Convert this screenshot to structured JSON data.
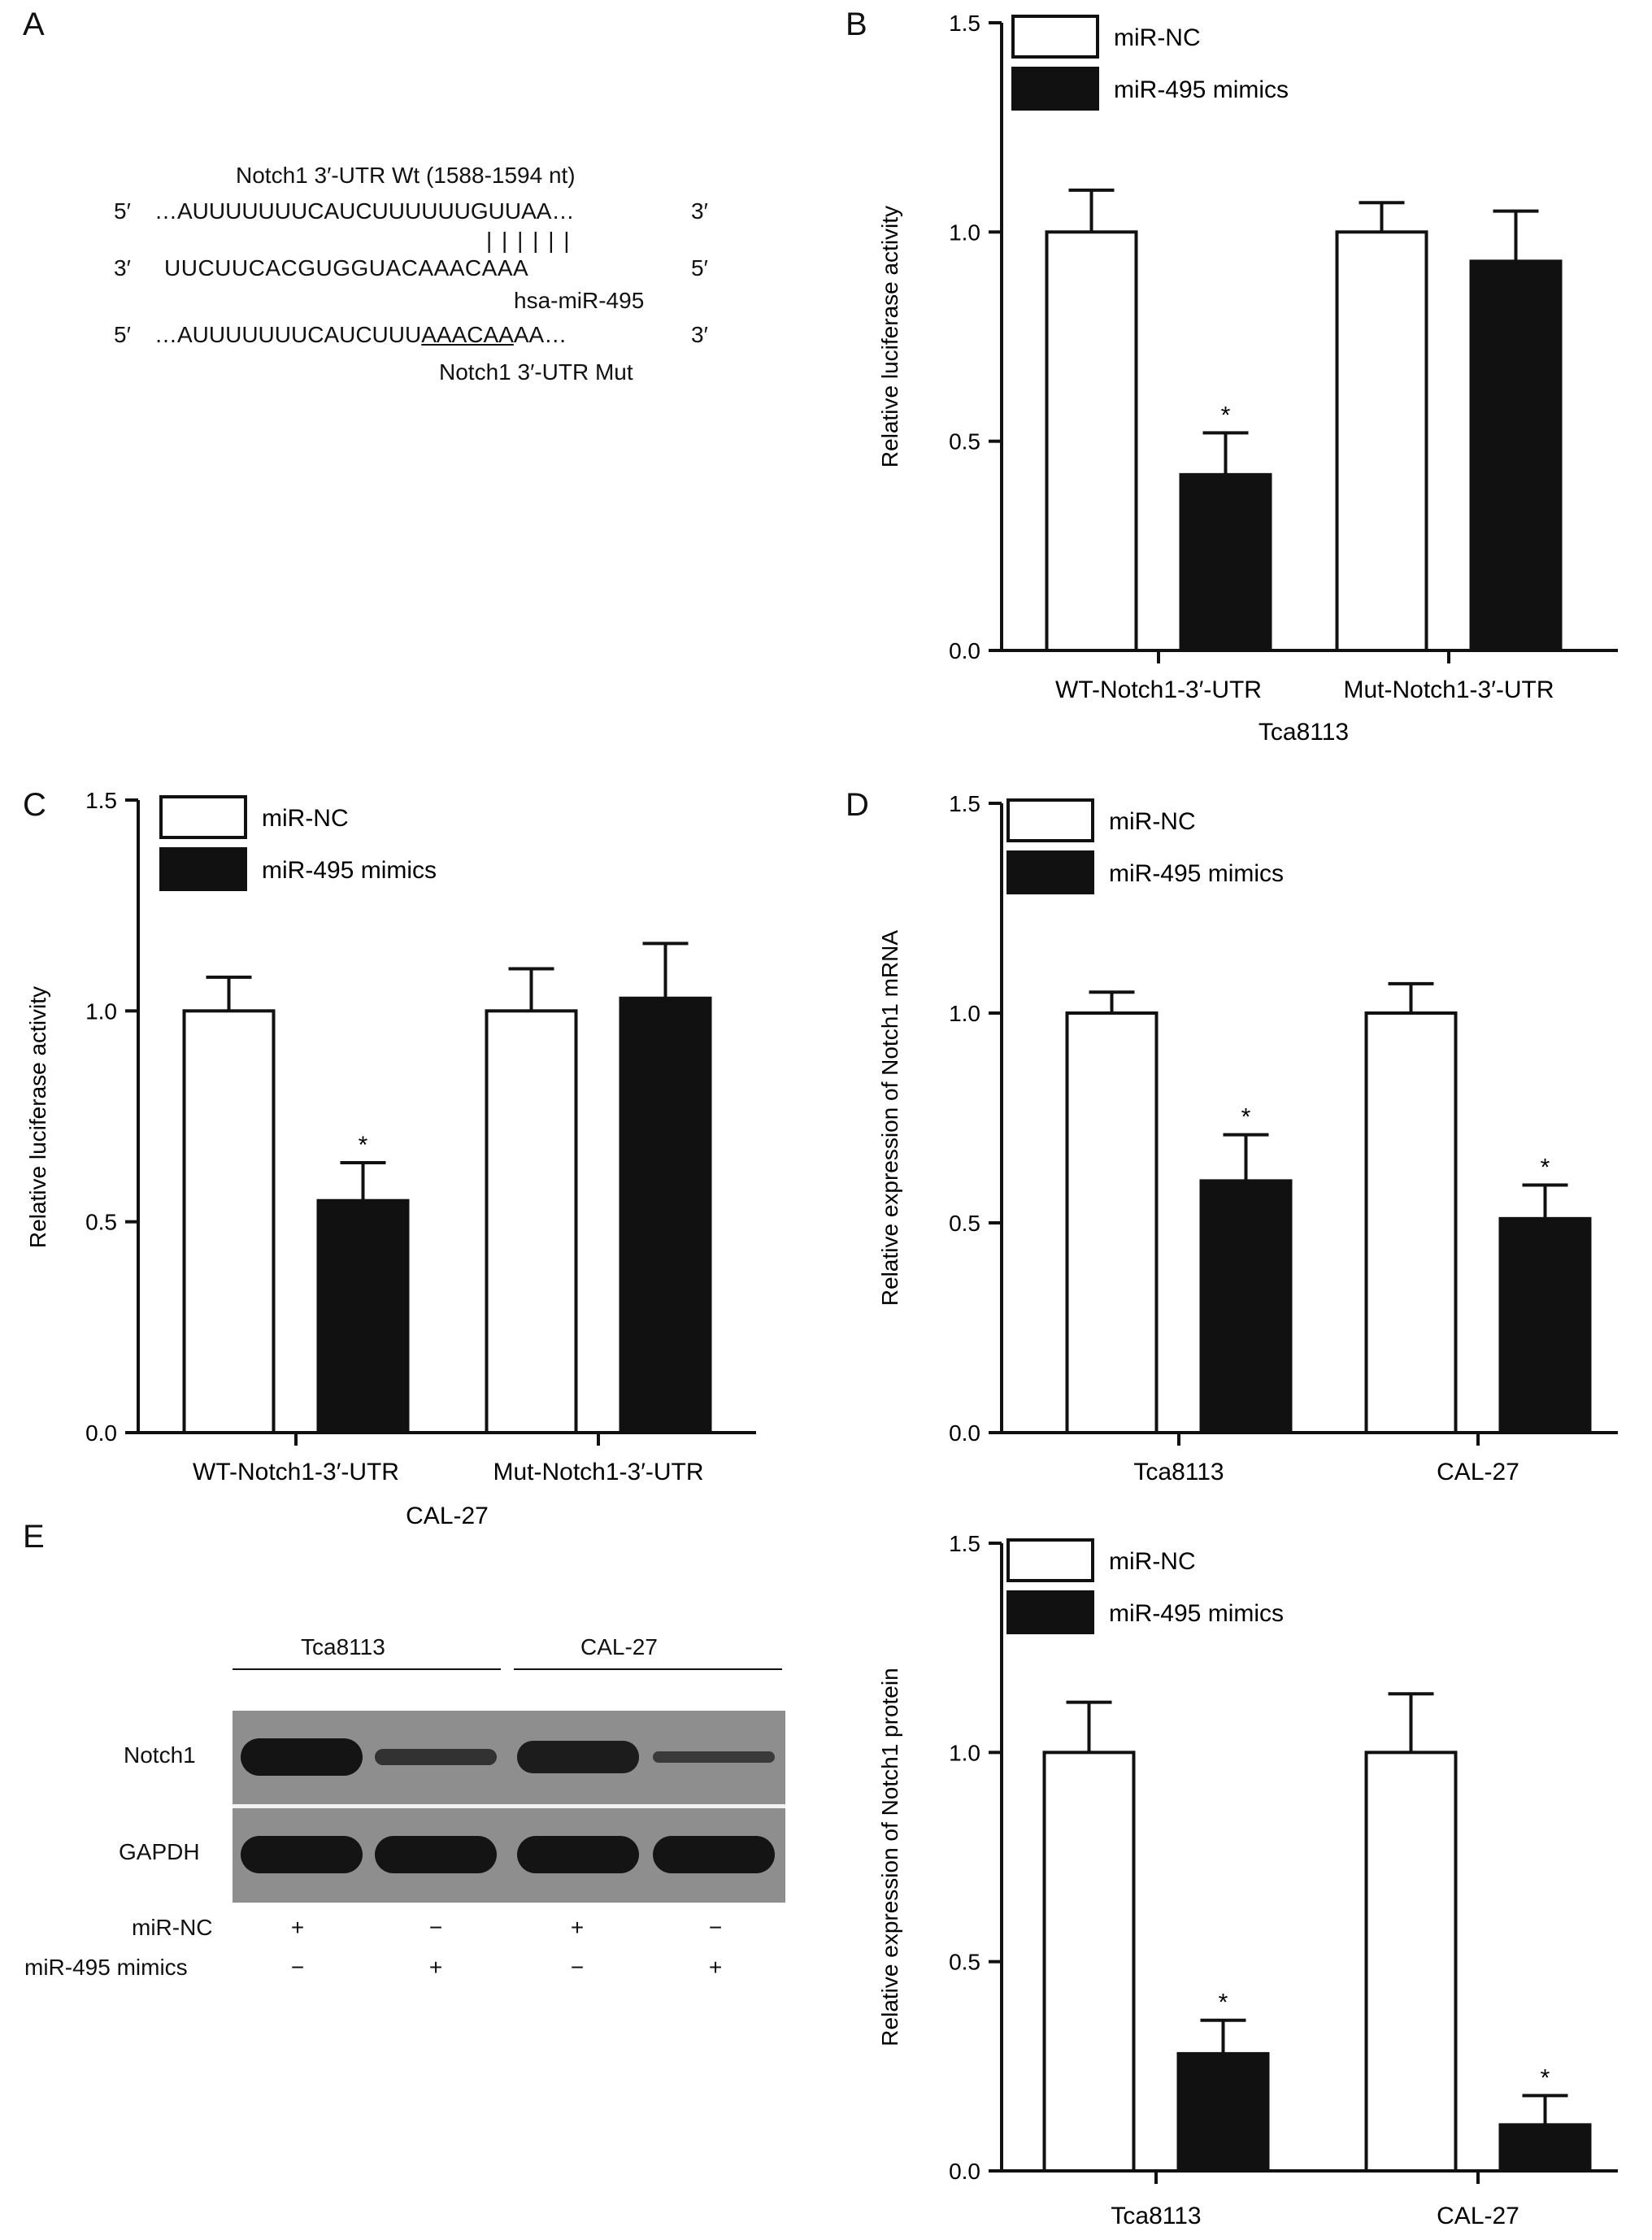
{
  "panels": {
    "A": "A",
    "B": "B",
    "C": "C",
    "D": "D",
    "E": "E"
  },
  "panel_a": {
    "wt_title": "Notch1 3′-UTR Wt (1588-1594 nt)",
    "wt_5": "5′",
    "wt_seq": "…AUUUUUUUCAUCUUUUUUGUUAA…",
    "wt_3": "3′",
    "pairing": "| | | | | |",
    "mir_3": "3′",
    "mir_seq": "UUCUUCACGUGGUACAAACAAA",
    "mir_5": "5′",
    "mir_name": "hsa-miR-495",
    "mut_5": "5′",
    "mut_seq_pre": "…AUUUUUUUCAUCUUU",
    "mut_seq_site": "AAACAA",
    "mut_seq_post": "AA…",
    "mut_3": "3′",
    "mut_title": "Notch1 3′-UTR Mut"
  },
  "blot": {
    "groups": [
      "Tca8113",
      "CAL-27"
    ],
    "rows": [
      "Notch1",
      "GAPDH"
    ],
    "conditions": [
      {
        "label": "miR-NC",
        "signs": [
          "+",
          "−",
          "+",
          "−"
        ]
      },
      {
        "label": "miR-495 mimics",
        "signs": [
          "−",
          "+",
          "−",
          "+"
        ]
      }
    ],
    "notch1_intensity": [
      1.0,
      0.45,
      0.85,
      0.3
    ],
    "gapdh_intensity": [
      1.0,
      1.0,
      1.0,
      1.0
    ]
  },
  "chart_data": [
    {
      "id": "B",
      "type": "bar",
      "categories": [
        "WT-Notch1-3′-UTR",
        "Mut-Notch1-3′-UTR"
      ],
      "group_label": "Tca8113",
      "ylabel": "Relative luciferase activity",
      "ylim": [
        0,
        1.5
      ],
      "yticks": [
        "0.0",
        "0.5",
        "1.0",
        "1.5"
      ],
      "series": [
        {
          "name": "miR-NC",
          "values": [
            1.0,
            1.0
          ],
          "errors": [
            0.1,
            0.07
          ],
          "color": "#ffffff"
        },
        {
          "name": "miR-495 mimics",
          "values": [
            0.42,
            0.93
          ],
          "errors": [
            0.1,
            0.12
          ],
          "color": "#111111"
        }
      ],
      "stars": [
        "",
        "*",
        "",
        ""
      ]
    },
    {
      "id": "C",
      "type": "bar",
      "categories": [
        "WT-Notch1-3′-UTR",
        "Mut-Notch1-3′-UTR"
      ],
      "group_label": "CAL-27",
      "ylabel": "Relative luciferase activity",
      "ylim": [
        0,
        1.5
      ],
      "yticks": [
        "0.0",
        "0.5",
        "1.0",
        "1.5"
      ],
      "series": [
        {
          "name": "miR-NC",
          "values": [
            1.0,
            1.0
          ],
          "errors": [
            0.08,
            0.1
          ],
          "color": "#ffffff"
        },
        {
          "name": "miR-495 mimics",
          "values": [
            0.55,
            1.03
          ],
          "errors": [
            0.09,
            0.13
          ],
          "color": "#111111"
        }
      ],
      "stars": [
        "",
        "*",
        "",
        ""
      ]
    },
    {
      "id": "D",
      "type": "bar",
      "categories": [
        "Tca8113",
        "CAL-27"
      ],
      "group_label": "",
      "ylabel": "Relative expression of  Notch1 mRNA",
      "ylim": [
        0,
        1.5
      ],
      "yticks": [
        "0.0",
        "0.5",
        "1.0",
        "1.5"
      ],
      "series": [
        {
          "name": "miR-NC",
          "values": [
            1.0,
            1.0
          ],
          "errors": [
            0.05,
            0.07
          ],
          "color": "#ffffff"
        },
        {
          "name": "miR-495 mimics",
          "values": [
            0.6,
            0.51
          ],
          "errors": [
            0.11,
            0.08
          ],
          "color": "#111111"
        }
      ],
      "stars": [
        "",
        "*",
        "",
        "*"
      ]
    },
    {
      "id": "E",
      "type": "bar",
      "categories": [
        "Tca8113",
        "CAL-27"
      ],
      "group_label": "",
      "ylabel": "Relative expression of  Notch1 protein",
      "ylim": [
        0,
        1.5
      ],
      "yticks": [
        "0.0",
        "0.5",
        "1.0",
        "1.5"
      ],
      "series": [
        {
          "name": "miR-NC",
          "values": [
            1.0,
            1.0
          ],
          "errors": [
            0.12,
            0.14
          ],
          "color": "#ffffff"
        },
        {
          "name": "miR-495 mimics",
          "values": [
            0.28,
            0.11
          ],
          "errors": [
            0.08,
            0.07
          ],
          "color": "#111111"
        }
      ],
      "stars": [
        "",
        "*",
        "",
        "*"
      ]
    }
  ]
}
